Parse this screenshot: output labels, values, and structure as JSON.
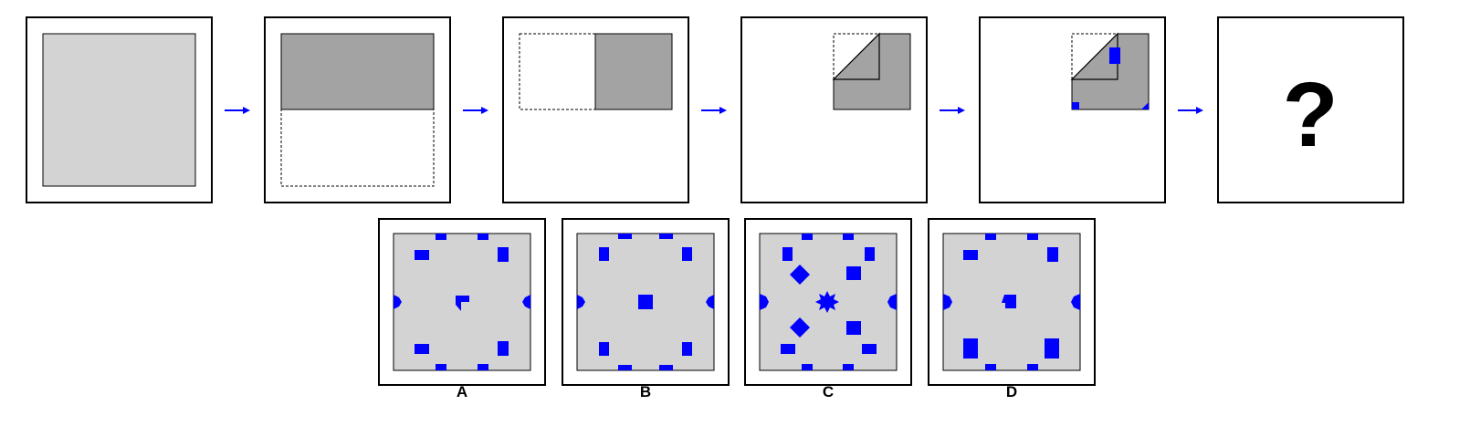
{
  "puzzle": {
    "colors": {
      "frame": "#000000",
      "paper": "#d3d3d3",
      "folded_paper": "#a3a3a3",
      "hole": "#0000ff",
      "arrow": "#0000ff",
      "dashed_outline": "#000000"
    },
    "steps": [
      {
        "step": 1,
        "content": "unfolded-square-paper"
      },
      {
        "step": 2,
        "content": "fold-bottom-half-up"
      },
      {
        "step": 3,
        "content": "fold-left-half-right"
      },
      {
        "step": 4,
        "content": "fold-top-left-corner-diagonally"
      },
      {
        "step": 5,
        "content": "punch-holes"
      },
      {
        "step": 6,
        "content": "question",
        "question_mark": "?"
      }
    ],
    "arrow_count": 5,
    "options": [
      {
        "letter": "A",
        "center_mark": "corner-arrow"
      },
      {
        "letter": "B",
        "center_mark": "square"
      },
      {
        "letter": "C",
        "center_mark": "star"
      },
      {
        "letter": "D",
        "center_mark": "arrow-left"
      }
    ]
  }
}
